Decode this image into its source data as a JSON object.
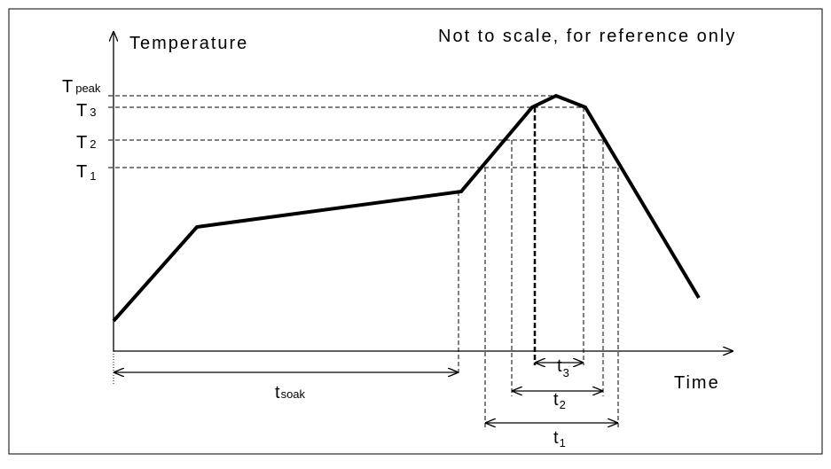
{
  "axes": {
    "y_label": "Temperature",
    "x_label": "Time"
  },
  "note": "Not to scale, for reference only",
  "temperature_levels": [
    {
      "id": "tpeak",
      "main": "T",
      "sub": "peak"
    },
    {
      "id": "t3",
      "main": "T",
      "sub": "3"
    },
    {
      "id": "t2",
      "main": "T",
      "sub": "2"
    },
    {
      "id": "t1",
      "main": "T",
      "sub": "1"
    }
  ],
  "time_intervals": [
    {
      "id": "tsoak",
      "main": "t",
      "sub": "soak"
    },
    {
      "id": "t3",
      "main": "t",
      "sub": "3"
    },
    {
      "id": "t2",
      "main": "t",
      "sub": "2"
    },
    {
      "id": "t1",
      "main": "t",
      "sub": "1"
    }
  ],
  "colors": {
    "line": "#000000",
    "background": "#ffffff"
  }
}
